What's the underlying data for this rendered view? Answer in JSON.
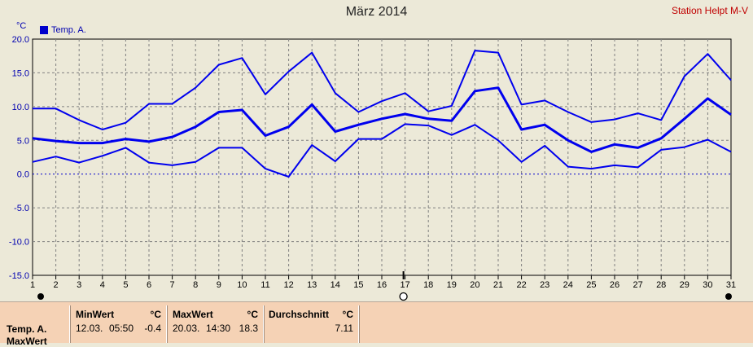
{
  "header": {
    "title": "März 2014",
    "station": "Station Helpt M-V",
    "unit": "°C",
    "legend_label": "Temp. A."
  },
  "chart_data": {
    "type": "line",
    "title": "März 2014",
    "ylabel": "°C",
    "ylim": [
      -15,
      20
    ],
    "yticks": [
      "20.0",
      "15.0",
      "10.0",
      "5.0",
      "0.0",
      "-5.0",
      "-10.0",
      "-15.0"
    ],
    "x": [
      1,
      2,
      3,
      4,
      5,
      6,
      7,
      8,
      9,
      10,
      11,
      12,
      13,
      14,
      15,
      16,
      17,
      18,
      19,
      20,
      21,
      22,
      23,
      24,
      25,
      26,
      27,
      28,
      29,
      30,
      31
    ],
    "grid": true,
    "legend": "top-left",
    "series": [
      {
        "name": "Temp. A.",
        "role": "max",
        "values": [
          9.7,
          9.7,
          8.0,
          6.6,
          7.6,
          10.4,
          10.4,
          12.8,
          16.2,
          17.2,
          11.8,
          15.2,
          18.0,
          12.0,
          9.2,
          10.8,
          12.0,
          9.3,
          10.1,
          18.3,
          18.0,
          10.3,
          10.9,
          9.2,
          7.7,
          8.1,
          9.0,
          8.0,
          14.5,
          17.8,
          13.9
        ]
      },
      {
        "name": "Temp. A.",
        "role": "avg",
        "values": [
          5.3,
          4.9,
          4.6,
          4.6,
          5.2,
          4.8,
          5.5,
          7.0,
          9.2,
          9.5,
          5.7,
          7.0,
          10.3,
          6.3,
          7.3,
          8.2,
          8.9,
          8.2,
          7.9,
          12.3,
          12.8,
          6.6,
          7.3,
          5.0,
          3.3,
          4.4,
          3.9,
          5.3,
          8.2,
          11.2,
          8.8
        ]
      },
      {
        "name": "Temp. A.",
        "role": "min",
        "values": [
          1.8,
          2.6,
          1.7,
          2.7,
          3.9,
          1.7,
          1.3,
          1.8,
          3.9,
          3.9,
          0.8,
          -0.4,
          4.3,
          1.9,
          5.2,
          5.2,
          7.4,
          7.2,
          5.8,
          7.3,
          5.0,
          1.8,
          4.2,
          1.1,
          0.8,
          1.3,
          1.0,
          3.6,
          4.0,
          5.1,
          3.3
        ]
      }
    ],
    "color": "#0000ee"
  },
  "summary": {
    "row_label": "Temp. A.",
    "row_label2": "MaxWert",
    "min": {
      "header": "MinWert",
      "unit": "°C",
      "date": "12.03.",
      "time": "05:50",
      "value": "-0.4"
    },
    "max": {
      "header": "MaxWert",
      "unit": "°C",
      "date": "20.03.",
      "time": "14:30",
      "value": "18.3"
    },
    "avg": {
      "header": "Durchschnitt",
      "unit": "°C",
      "value": "7.11"
    }
  }
}
